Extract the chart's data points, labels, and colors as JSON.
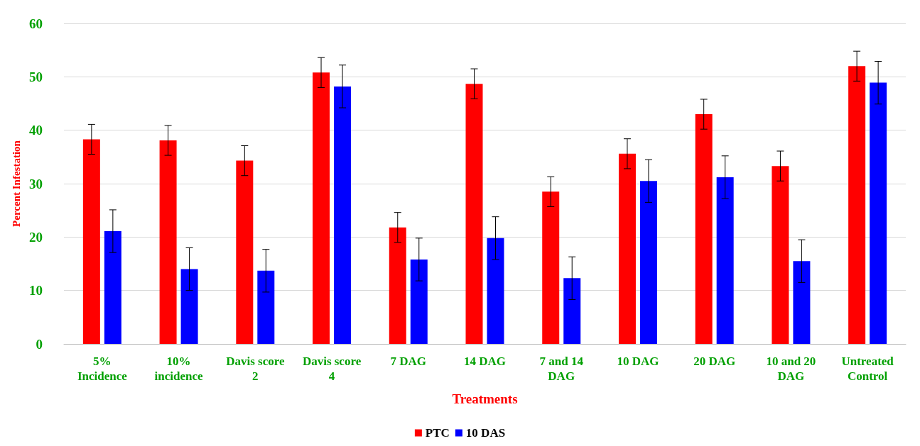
{
  "chart_data": {
    "type": "bar",
    "xlabel": "Treatments",
    "ylabel": "Percent Infestation",
    "categories": [
      "5%\nIncidence",
      "10%\nincidence",
      "Davis score\n2",
      "Davis score\n4",
      "7 DAG",
      "14 DAG",
      "7 and 14\nDAG",
      "10 DAG",
      "20 DAG",
      "10 and 20\nDAG",
      "Untreated\nControl"
    ],
    "series": [
      {
        "name": "PTC",
        "color": "#ff0000",
        "values": [
          38.3,
          38.1,
          34.3,
          50.8,
          21.8,
          48.7,
          28.5,
          35.6,
          43.0,
          33.3,
          52.0
        ],
        "errors": [
          2.8,
          2.8,
          2.8,
          2.8,
          2.8,
          2.8,
          2.8,
          2.8,
          2.8,
          2.8,
          2.8
        ]
      },
      {
        "name": "10 DAS",
        "color": "#0000ff",
        "values": [
          21.1,
          14.0,
          13.7,
          48.2,
          15.8,
          19.8,
          12.3,
          30.5,
          31.2,
          15.5,
          48.9
        ],
        "errors": [
          4.0,
          4.0,
          4.0,
          4.0,
          4.0,
          4.0,
          4.0,
          4.0,
          4.0,
          4.0,
          4.0
        ]
      }
    ],
    "ylim": [
      0,
      60
    ],
    "yticks": [
      0,
      10,
      20,
      30,
      40,
      50,
      60
    ],
    "grid": "y",
    "legend": "bottom"
  }
}
